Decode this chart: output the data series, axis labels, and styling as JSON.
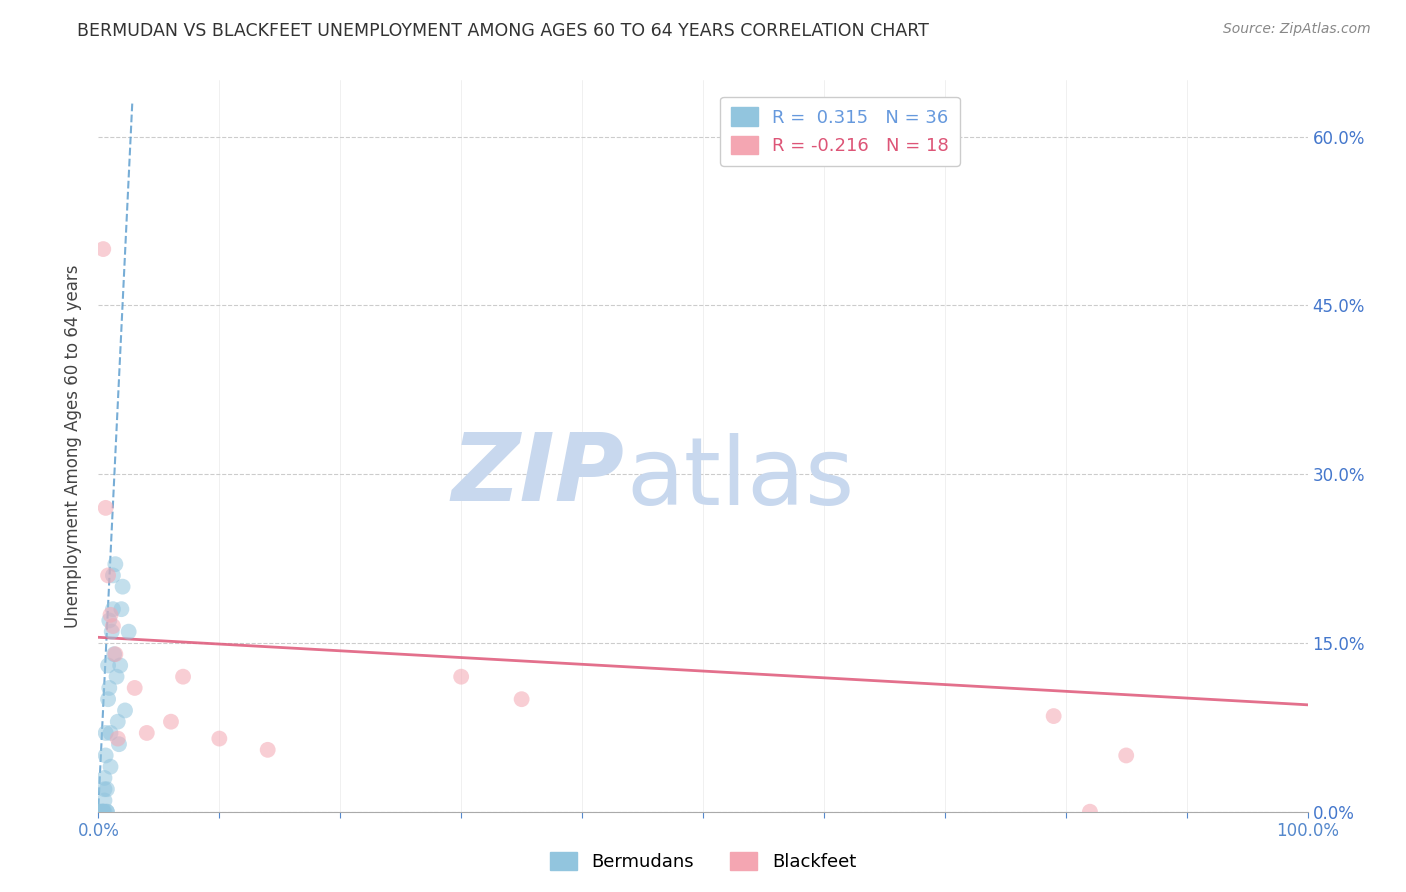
{
  "title": "BERMUDAN VS BLACKFEET UNEMPLOYMENT AMONG AGES 60 TO 64 YEARS CORRELATION CHART",
  "source": "Source: ZipAtlas.com",
  "ylabel": "Unemployment Among Ages 60 to 64 years",
  "xlim": [
    0.0,
    1.0
  ],
  "ylim": [
    0.0,
    0.65
  ],
  "xticks": [
    0.0,
    0.1,
    0.2,
    0.3,
    0.4,
    0.5,
    0.6,
    0.7,
    0.8,
    0.9,
    1.0
  ],
  "xtick_labels_show": [
    "0.0%",
    "",
    "",
    "",
    "",
    "",
    "",
    "",
    "",
    "",
    "100.0%"
  ],
  "yticks": [
    0.0,
    0.15,
    0.3,
    0.45,
    0.6
  ],
  "ytick_labels": [
    "0.0%",
    "15.0%",
    "30.0%",
    "45.0%",
    "60.0%"
  ],
  "legend_entries": [
    {
      "label": "R =  0.315   N = 36",
      "color": "#6699dd"
    },
    {
      "label": "R = -0.216   N = 18",
      "color": "#dd5577"
    }
  ],
  "bermudan_x": [
    0.0,
    0.001,
    0.002,
    0.003,
    0.003,
    0.004,
    0.004,
    0.004,
    0.005,
    0.005,
    0.005,
    0.005,
    0.006,
    0.006,
    0.007,
    0.007,
    0.007,
    0.008,
    0.008,
    0.009,
    0.009,
    0.01,
    0.01,
    0.011,
    0.012,
    0.012,
    0.013,
    0.014,
    0.015,
    0.016,
    0.017,
    0.018,
    0.019,
    0.02,
    0.022,
    0.025
  ],
  "bermudan_y": [
    0.0,
    0.0,
    0.0,
    0.0,
    0.0,
    0.0,
    0.0,
    0.0,
    0.0,
    0.01,
    0.02,
    0.03,
    0.05,
    0.07,
    0.0,
    0.0,
    0.02,
    0.1,
    0.13,
    0.11,
    0.17,
    0.04,
    0.07,
    0.16,
    0.18,
    0.21,
    0.14,
    0.22,
    0.12,
    0.08,
    0.06,
    0.13,
    0.18,
    0.2,
    0.09,
    0.16
  ],
  "blackfeet_x": [
    0.004,
    0.006,
    0.008,
    0.01,
    0.012,
    0.014,
    0.016,
    0.03,
    0.04,
    0.06,
    0.07,
    0.1,
    0.14,
    0.3,
    0.35,
    0.79,
    0.82,
    0.85
  ],
  "blackfeet_y": [
    0.5,
    0.27,
    0.21,
    0.175,
    0.165,
    0.14,
    0.065,
    0.11,
    0.07,
    0.08,
    0.12,
    0.065,
    0.055,
    0.12,
    0.1,
    0.085,
    0.0,
    0.05
  ],
  "blue_trend_x": [
    0.0,
    0.028
  ],
  "blue_trend_y": [
    0.005,
    0.63
  ],
  "pink_trend_x": [
    0.0,
    1.0
  ],
  "pink_trend_y": [
    0.155,
    0.095
  ],
  "watermark_zip": "ZIP",
  "watermark_atlas": "atlas",
  "background_color": "#ffffff",
  "scatter_blue": "#92c5de",
  "scatter_pink": "#f4a6b2",
  "trend_blue": "#5599cc",
  "trend_pink": "#e06080",
  "grid_color": "#cccccc",
  "title_color": "#333333",
  "axis_label_color": "#444444",
  "tick_color_x": "#5588cc",
  "tick_color_right": "#4477cc",
  "watermark_zip_color": "#c8d8ee",
  "watermark_atlas_color": "#c8d8ee"
}
